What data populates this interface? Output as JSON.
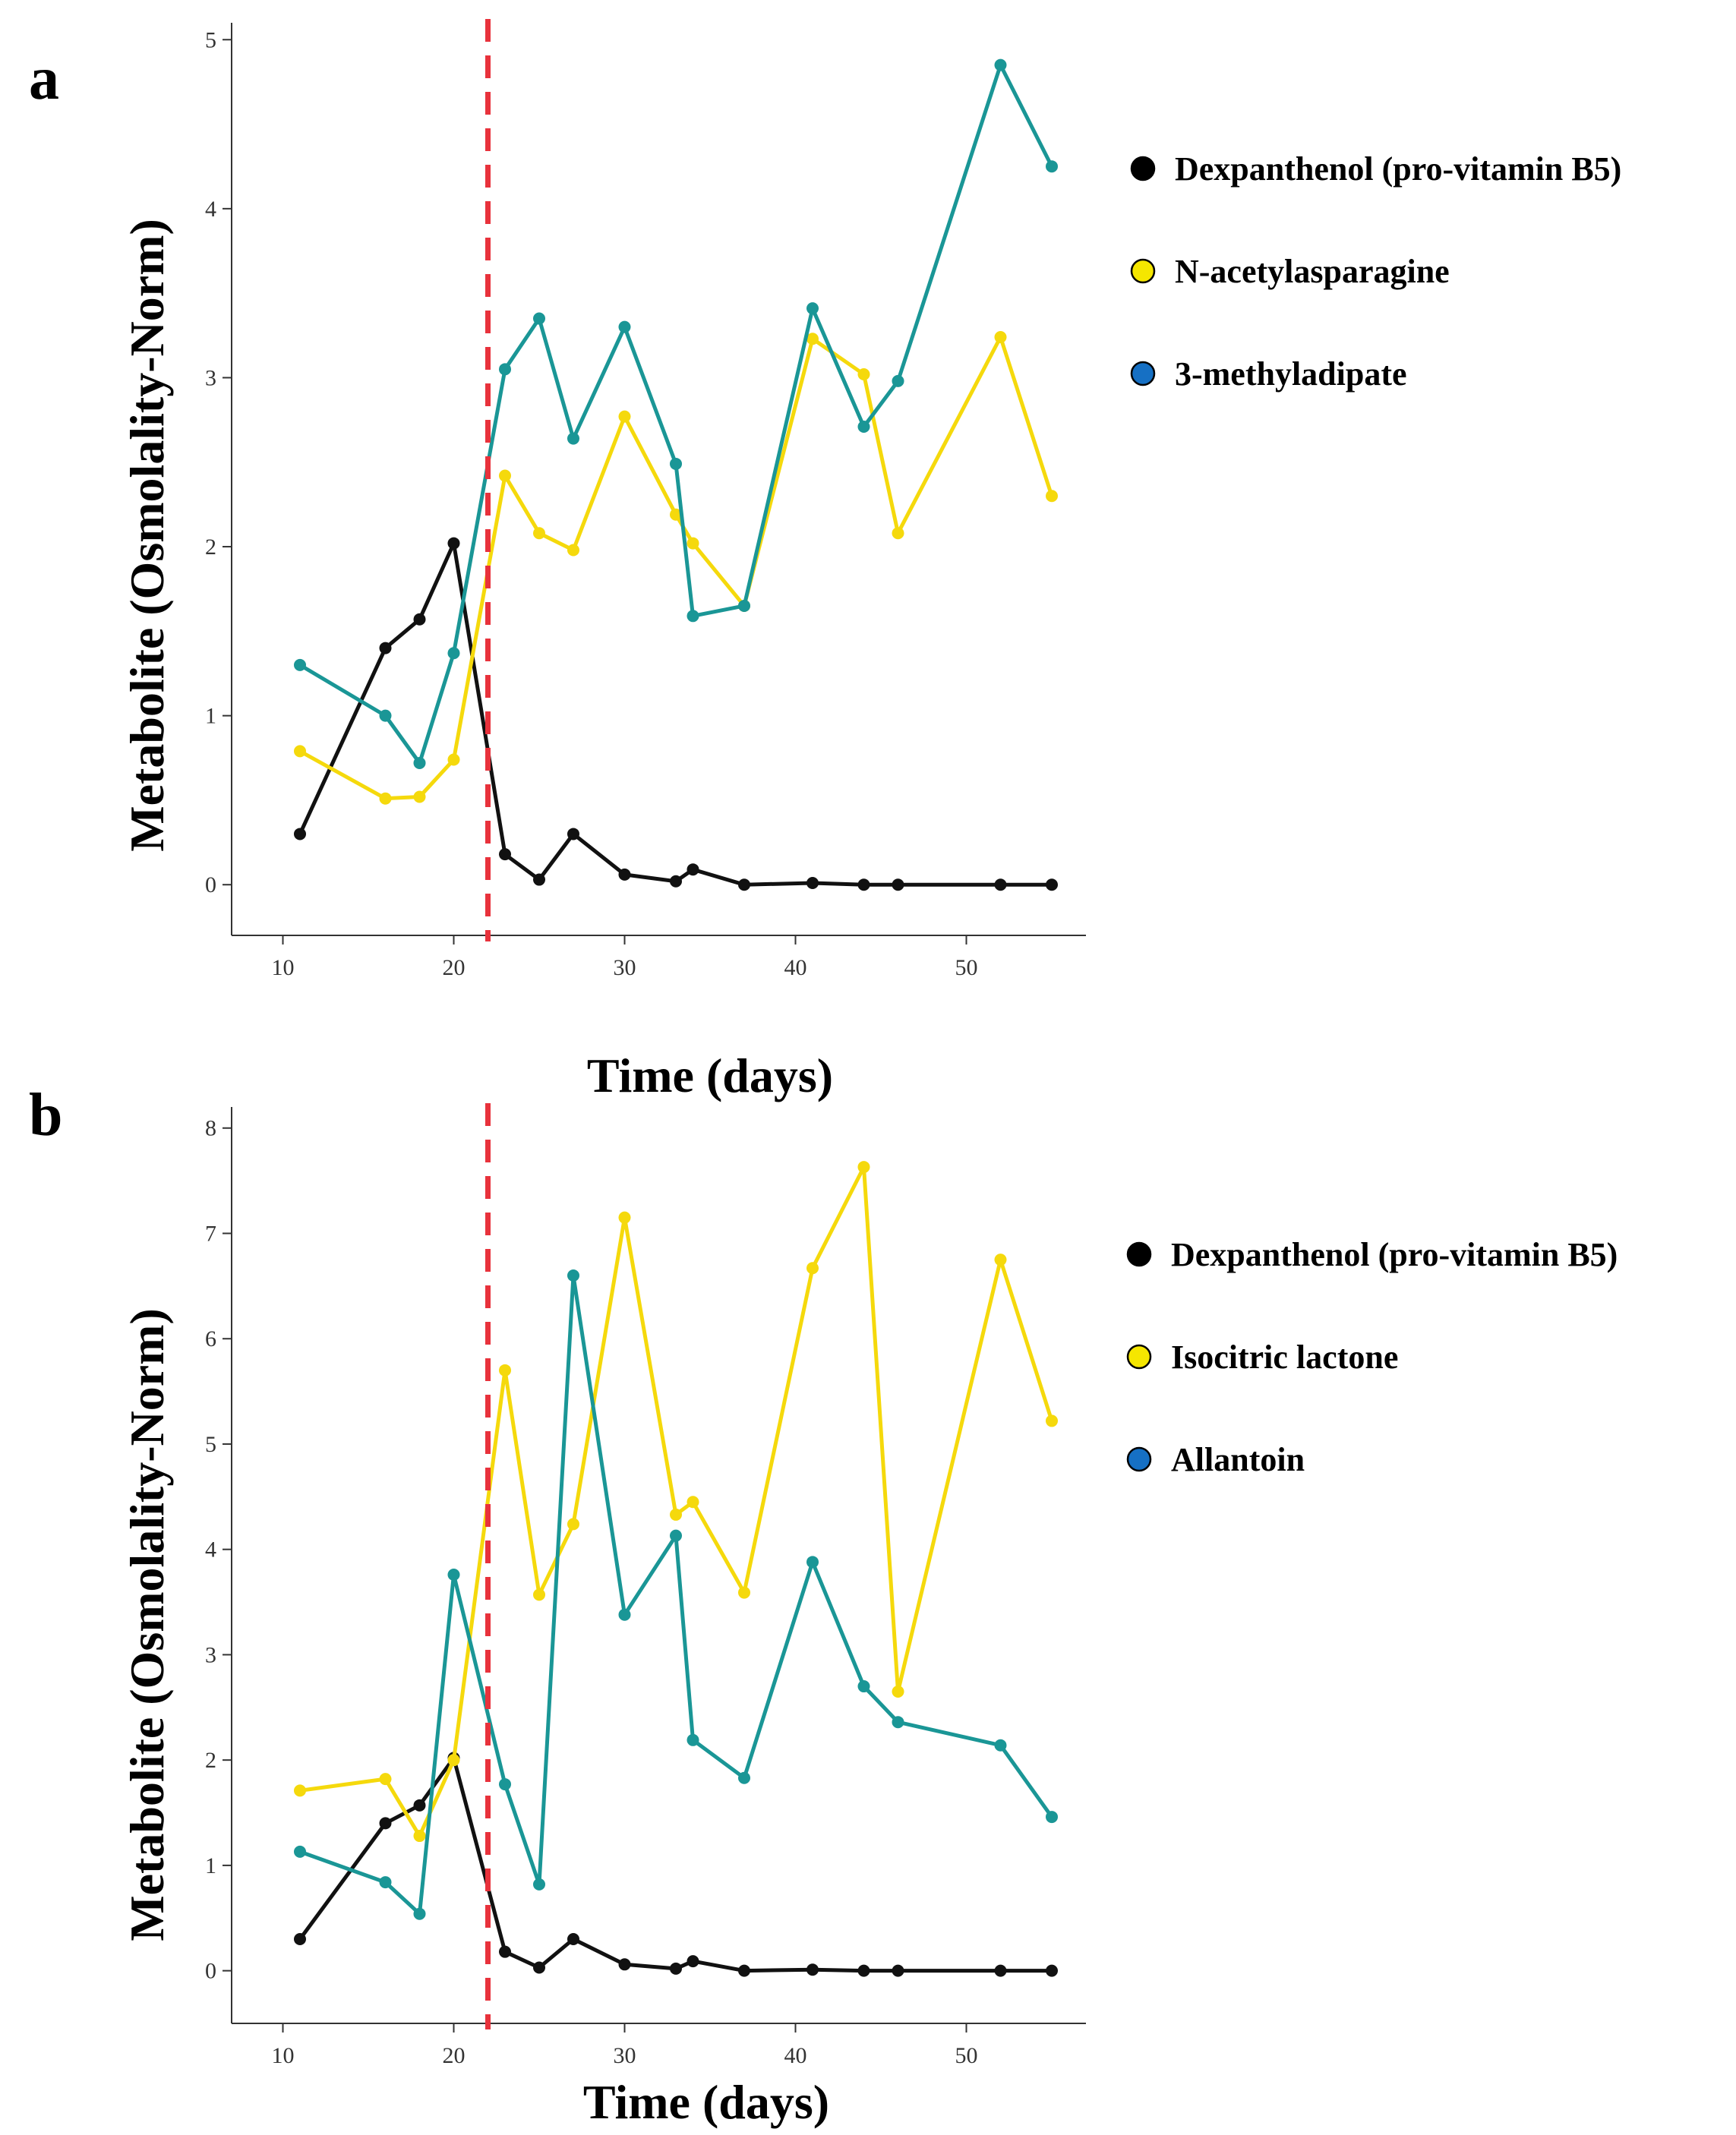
{
  "chart_data": [
    {
      "panel_label": "a",
      "type": "line",
      "xlabel": "Time (days)",
      "ylabel": "Metabolite (Osmolality-Norm)",
      "xlim": [
        7,
        57
      ],
      "ylim": [
        -0.3,
        5.1
      ],
      "xticks": [
        10,
        20,
        30,
        40,
        50
      ],
      "yticks": [
        0,
        1,
        2,
        3,
        4,
        5
      ],
      "cutoff_x": 22,
      "cutoff_color": "#e8323c",
      "legend_position": "right",
      "series": [
        {
          "name": "Dexpanthenol (pro-vitamin B5)",
          "line_color": "#111111",
          "legend_color": "#000000",
          "x": [
            11,
            16,
            18,
            20,
            23,
            25,
            27,
            30,
            33,
            34,
            37,
            41,
            44,
            46,
            52,
            55
          ],
          "y": [
            0.3,
            1.4,
            1.57,
            2.02,
            0.18,
            0.03,
            0.3,
            0.06,
            0.02,
            0.09,
            0.0,
            0.01,
            0.0,
            0.0,
            0.0,
            0.0
          ]
        },
        {
          "name": "N-acetylasparagine",
          "line_color": "#f5d90c",
          "legend_color": "#f5e600",
          "x": [
            11,
            16,
            18,
            20,
            23,
            25,
            27,
            30,
            33,
            34,
            37,
            41,
            44,
            46,
            52,
            55
          ],
          "y": [
            0.79,
            0.51,
            0.52,
            0.74,
            2.42,
            2.08,
            1.98,
            2.77,
            2.19,
            2.02,
            1.65,
            3.23,
            3.02,
            2.08,
            3.24,
            2.3
          ]
        },
        {
          "name": "3-methyladipate",
          "line_color": "#1a9696",
          "legend_color": "#1670c4",
          "x": [
            11,
            16,
            18,
            20,
            23,
            25,
            27,
            30,
            33,
            34,
            37,
            41,
            44,
            46,
            52,
            55
          ],
          "y": [
            1.3,
            1.0,
            0.72,
            1.37,
            3.05,
            3.35,
            2.64,
            3.3,
            2.49,
            1.59,
            1.65,
            3.41,
            2.71,
            2.98,
            4.85,
            4.25
          ]
        }
      ]
    },
    {
      "panel_label": "b",
      "type": "line",
      "xlabel": "Time (days)",
      "ylabel": "Metabolite (Osmolality-Norm)",
      "xlim": [
        7,
        57
      ],
      "ylim": [
        -0.5,
        8.2
      ],
      "xticks": [
        10,
        20,
        30,
        40,
        50
      ],
      "yticks": [
        0,
        1,
        2,
        3,
        4,
        5,
        6,
        7,
        8
      ],
      "cutoff_x": 22,
      "cutoff_color": "#e8323c",
      "legend_position": "right",
      "series": [
        {
          "name": "Dexpanthenol (pro-vitamin B5)",
          "line_color": "#111111",
          "legend_color": "#000000",
          "x": [
            11,
            16,
            18,
            20,
            23,
            25,
            27,
            30,
            33,
            34,
            37,
            41,
            44,
            46,
            52,
            55
          ],
          "y": [
            0.3,
            1.4,
            1.57,
            2.02,
            0.18,
            0.03,
            0.3,
            0.06,
            0.02,
            0.09,
            0.0,
            0.01,
            0.0,
            0.0,
            0.0,
            0.0
          ]
        },
        {
          "name": "Isocitric lactone",
          "line_color": "#f5d90c",
          "legend_color": "#f5e600",
          "x": [
            11,
            16,
            18,
            20,
            23,
            25,
            27,
            30,
            33,
            34,
            37,
            41,
            44,
            46,
            52,
            55
          ],
          "y": [
            1.71,
            1.82,
            1.28,
            2.0,
            5.7,
            3.57,
            4.24,
            7.15,
            4.33,
            4.45,
            3.59,
            6.67,
            7.63,
            2.65,
            6.75,
            5.22
          ]
        },
        {
          "name": "Allantoin",
          "line_color": "#1a9696",
          "legend_color": "#1670c4",
          "x": [
            11,
            16,
            18,
            20,
            23,
            25,
            27,
            30,
            33,
            34,
            37,
            41,
            44,
            46,
            52,
            55
          ],
          "y": [
            1.13,
            0.84,
            0.54,
            3.76,
            1.77,
            0.82,
            6.6,
            3.38,
            4.13,
            2.19,
            1.83,
            3.88,
            2.7,
            2.36,
            2.14,
            1.46
          ]
        }
      ]
    }
  ]
}
